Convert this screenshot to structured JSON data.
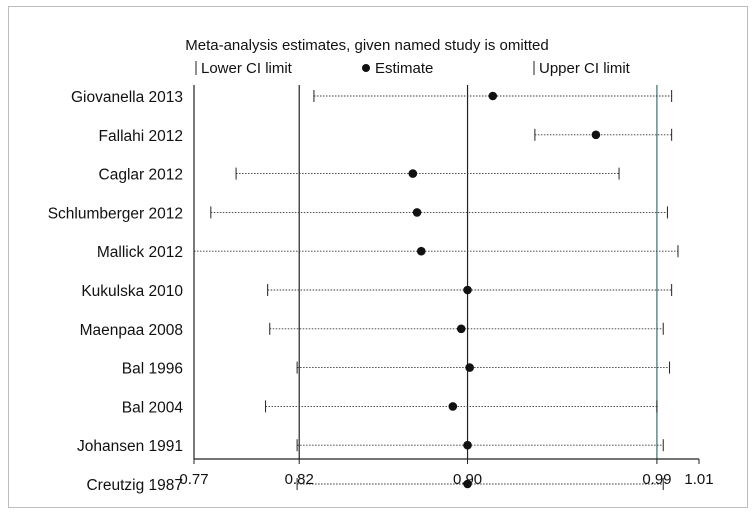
{
  "chart_data": {
    "type": "forest",
    "title": "Meta-analysis estimates, given named study is omitted",
    "legend": {
      "lower": "Lower CI limit",
      "estimate": "Estimate",
      "upper": "Upper CI limit",
      "placement": "top"
    },
    "xlim": [
      0.77,
      1.01
    ],
    "xticks": [
      0.77,
      0.82,
      0.9,
      0.99,
      1.01
    ],
    "xtick_labels": [
      "0.77",
      "0.82",
      "0.90",
      "0.99",
      "1.01"
    ],
    "reference_lines": [
      {
        "value": 0.82,
        "color": "#222222"
      },
      {
        "value": 0.9,
        "color": "#222222"
      },
      {
        "value": 0.99,
        "color": "#3d6f73"
      }
    ],
    "studies": [
      {
        "name": "Giovanella 2013",
        "estimate": 0.912,
        "lower": 0.827,
        "upper": 0.997
      },
      {
        "name": "Fallahi 2012",
        "estimate": 0.961,
        "lower": 0.932,
        "upper": 0.997
      },
      {
        "name": "Caglar 2012",
        "estimate": 0.874,
        "lower": 0.79,
        "upper": 0.972
      },
      {
        "name": "Schlumberger 2012",
        "estimate": 0.876,
        "lower": 0.778,
        "upper": 0.995
      },
      {
        "name": "Mallick 2012",
        "estimate": 0.878,
        "lower": 0.77,
        "upper": 1.0
      },
      {
        "name": "Kukulska 2010",
        "estimate": 0.9,
        "lower": 0.805,
        "upper": 0.997
      },
      {
        "name": "Maenpaa 2008",
        "estimate": 0.897,
        "lower": 0.806,
        "upper": 0.993
      },
      {
        "name": "Bal 1996",
        "estimate": 0.901,
        "lower": 0.819,
        "upper": 0.996
      },
      {
        "name": "Bal 2004",
        "estimate": 0.893,
        "lower": 0.804,
        "upper": 0.99
      },
      {
        "name": "Johansen 1991",
        "estimate": 0.9,
        "lower": 0.819,
        "upper": 0.993
      },
      {
        "name": "Creutzig 1987",
        "estimate": 0.9,
        "lower": 0.819,
        "upper": 0.993
      }
    ],
    "grid": false
  }
}
